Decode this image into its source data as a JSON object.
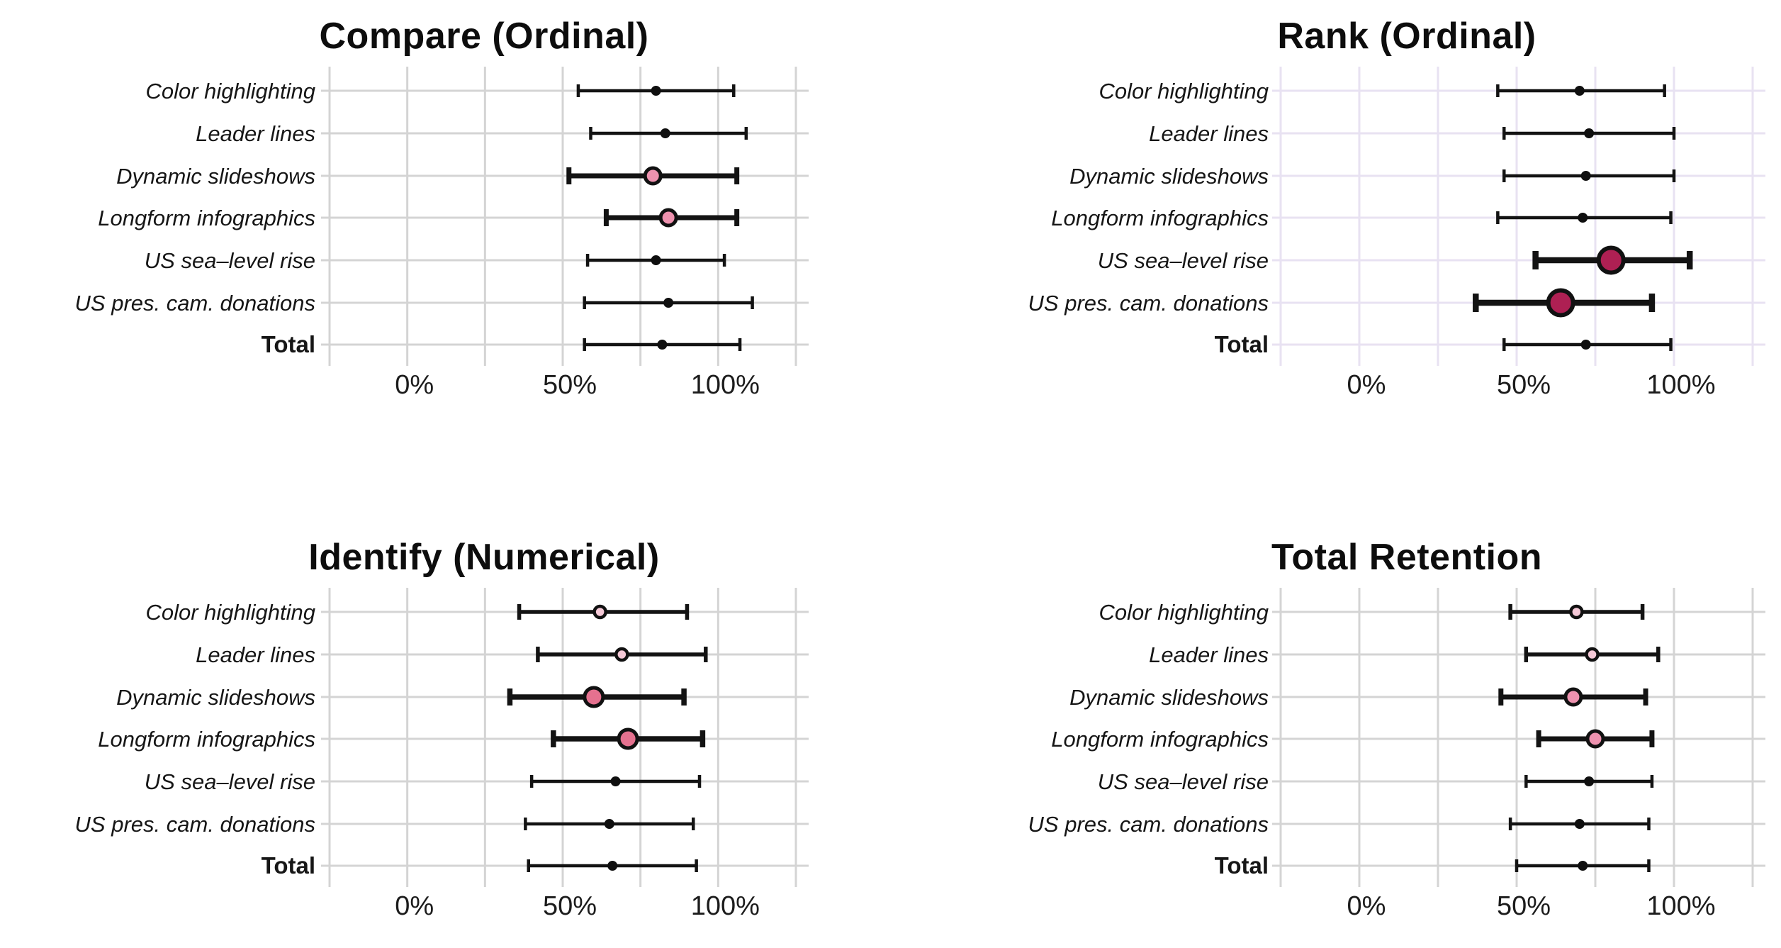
{
  "page": {
    "background": "#ffffff"
  },
  "axis": {
    "xlim": [
      -25,
      125
    ],
    "grid_step": 25,
    "grid_on": true,
    "ticks": [
      {
        "value": 0,
        "label": "0%"
      },
      {
        "value": 50,
        "label": "50%"
      },
      {
        "value": 100,
        "label": "100%"
      }
    ]
  },
  "dot_styles": {
    "small-black": {
      "fill": "#0f0f0f",
      "stroke": "#0f0f0f",
      "r": 6.5,
      "stroke_width": 1,
      "line_width": 4.5,
      "cap_half": 9
    },
    "light-pink": {
      "fill": "#f5c9d7",
      "stroke": "#111111",
      "r": 8,
      "stroke_width": 4.5,
      "line_width": 5.5,
      "cap_half": 11
    },
    "pink": {
      "fill": "#ee92af",
      "stroke": "#111111",
      "r": 11,
      "stroke_width": 5,
      "line_width": 7,
      "cap_half": 12
    },
    "rose": {
      "fill": "#e5718f",
      "stroke": "#111111",
      "r": 13,
      "stroke_width": 5,
      "line_width": 7.5,
      "cap_half": 12
    },
    "maroon": {
      "fill": "#ae2053",
      "stroke": "#111111",
      "r": 17.5,
      "stroke_width": 6,
      "line_width": 8.5,
      "cap_half": 13
    }
  },
  "chart_data": [
    {
      "type": "dot-interval",
      "title": "Compare (Ordinal)",
      "unit": "percent",
      "grid_color": "#d4d4d4",
      "rows": [
        {
          "label": "Color highlighting",
          "mean": 80,
          "lo": 55,
          "hi": 105,
          "dot_style": "small-black"
        },
        {
          "label": "Leader lines",
          "mean": 83,
          "lo": 59,
          "hi": 109,
          "dot_style": "small-black"
        },
        {
          "label": "Dynamic slideshows",
          "mean": 79,
          "lo": 52,
          "hi": 106,
          "dot_style": "pink"
        },
        {
          "label": "Longform infographics",
          "mean": 84,
          "lo": 64,
          "hi": 106,
          "dot_style": "pink"
        },
        {
          "label": "US sea–level rise",
          "mean": 80,
          "lo": 58,
          "hi": 102,
          "dot_style": "small-black"
        },
        {
          "label": "US pres. cam. donations",
          "mean": 84,
          "lo": 57,
          "hi": 111,
          "dot_style": "small-black"
        },
        {
          "label": "Total",
          "mean": 82,
          "lo": 57,
          "hi": 107,
          "dot_style": "small-black"
        }
      ]
    },
    {
      "type": "dot-interval",
      "title": "Rank (Ordinal)",
      "unit": "percent",
      "grid_color": "#e8e2f2",
      "rows": [
        {
          "label": "Color highlighting",
          "mean": 70,
          "lo": 44,
          "hi": 97,
          "dot_style": "small-black"
        },
        {
          "label": "Leader lines",
          "mean": 73,
          "lo": 46,
          "hi": 100,
          "dot_style": "small-black"
        },
        {
          "label": "Dynamic slideshows",
          "mean": 72,
          "lo": 46,
          "hi": 100,
          "dot_style": "small-black"
        },
        {
          "label": "Longform infographics",
          "mean": 71,
          "lo": 44,
          "hi": 99,
          "dot_style": "small-black"
        },
        {
          "label": "US sea–level rise",
          "mean": 80,
          "lo": 56,
          "hi": 105,
          "dot_style": "maroon"
        },
        {
          "label": "US pres. cam. donations",
          "mean": 64,
          "lo": 37,
          "hi": 93,
          "dot_style": "maroon"
        },
        {
          "label": "Total",
          "mean": 72,
          "lo": 46,
          "hi": 99,
          "dot_style": "small-black"
        }
      ]
    },
    {
      "type": "dot-interval",
      "title": "Identify (Numerical)",
      "unit": "percent",
      "grid_color": "#d4d4d4",
      "rows": [
        {
          "label": "Color highlighting",
          "mean": 62,
          "lo": 36,
          "hi": 90,
          "dot_style": "light-pink"
        },
        {
          "label": "Leader lines",
          "mean": 69,
          "lo": 42,
          "hi": 96,
          "dot_style": "light-pink"
        },
        {
          "label": "Dynamic slideshows",
          "mean": 60,
          "lo": 33,
          "hi": 89,
          "dot_style": "rose"
        },
        {
          "label": "Longform infographics",
          "mean": 71,
          "lo": 47,
          "hi": 95,
          "dot_style": "rose"
        },
        {
          "label": "US sea–level rise",
          "mean": 67,
          "lo": 40,
          "hi": 94,
          "dot_style": "small-black"
        },
        {
          "label": "US pres. cam. donations",
          "mean": 65,
          "lo": 38,
          "hi": 92,
          "dot_style": "small-black"
        },
        {
          "label": "Total",
          "mean": 66,
          "lo": 39,
          "hi": 93,
          "dot_style": "small-black"
        }
      ]
    },
    {
      "type": "dot-interval",
      "title": "Total Retention",
      "unit": "percent",
      "grid_color": "#d4d4d4",
      "rows": [
        {
          "label": "Color highlighting",
          "mean": 69,
          "lo": 48,
          "hi": 90,
          "dot_style": "light-pink"
        },
        {
          "label": "Leader lines",
          "mean": 74,
          "lo": 53,
          "hi": 95,
          "dot_style": "light-pink"
        },
        {
          "label": "Dynamic slideshows",
          "mean": 68,
          "lo": 45,
          "hi": 91,
          "dot_style": "pink"
        },
        {
          "label": "Longform infographics",
          "mean": 75,
          "lo": 57,
          "hi": 93,
          "dot_style": "pink"
        },
        {
          "label": "US sea–level rise",
          "mean": 73,
          "lo": 53,
          "hi": 93,
          "dot_style": "small-black"
        },
        {
          "label": "US pres. cam. donations",
          "mean": 70,
          "lo": 48,
          "hi": 92,
          "dot_style": "small-black"
        },
        {
          "label": "Total",
          "mean": 71,
          "lo": 50,
          "hi": 92,
          "dot_style": "small-black"
        }
      ]
    }
  ]
}
